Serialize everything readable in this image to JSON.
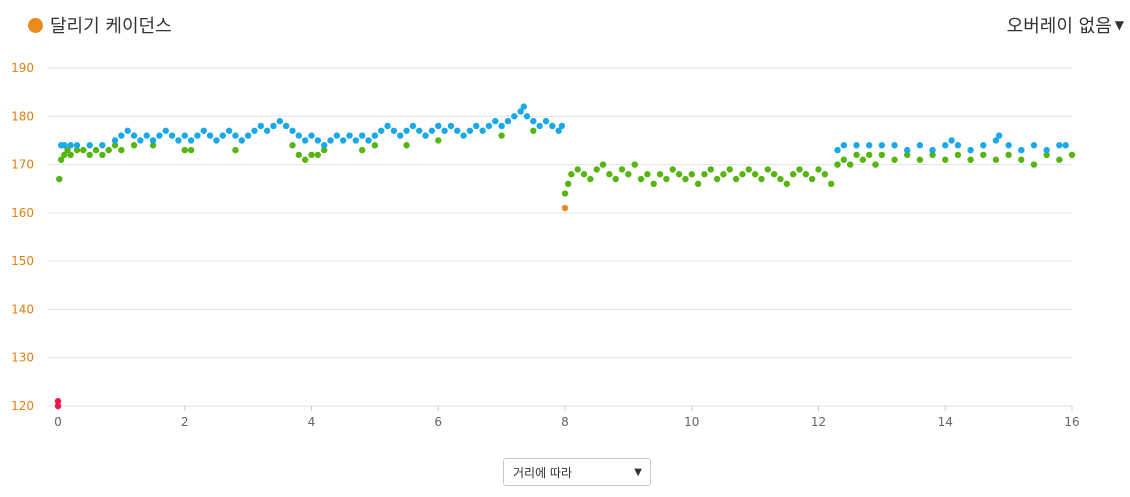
{
  "header": {
    "title": "달리기 케이던스",
    "overlay_label": "오버레이 없음",
    "legend_color": "#ec8a1b",
    "overlay_icon": "chevron-down-icon"
  },
  "footer": {
    "select_value": "거리에 따라",
    "select_icon": "chevron-down-icon"
  },
  "chart_data": {
    "type": "scatter",
    "xlabel": "",
    "ylabel": "",
    "xlim": [
      0,
      16
    ],
    "ylim": [
      120,
      190
    ],
    "x_ticks": [
      0,
      2,
      4,
      6,
      8,
      10,
      12,
      14,
      16
    ],
    "y_ticks": [
      120,
      130,
      140,
      150,
      160,
      170,
      180,
      190
    ],
    "grid": true,
    "colors": {
      "red": "#e8174a",
      "orange": "#ec8a1b",
      "green": "#55b612",
      "blue": "#1ba8e8"
    },
    "series": [
      {
        "color": "red",
        "points": [
          [
            0.0,
            120
          ],
          [
            0.0,
            121
          ]
        ]
      },
      {
        "color": "orange",
        "points": [
          [
            8.0,
            161
          ]
        ]
      },
      {
        "color": "green",
        "points": [
          [
            0.02,
            167
          ],
          [
            0.05,
            171
          ],
          [
            0.1,
            172
          ],
          [
            0.15,
            173
          ],
          [
            0.2,
            172
          ],
          [
            0.3,
            173
          ],
          [
            0.4,
            173
          ],
          [
            0.5,
            172
          ],
          [
            0.6,
            173
          ],
          [
            0.7,
            172
          ],
          [
            0.8,
            173
          ],
          [
            0.9,
            174
          ],
          [
            1.0,
            173
          ],
          [
            1.2,
            174
          ],
          [
            1.5,
            174
          ],
          [
            2.0,
            173
          ],
          [
            2.1,
            173
          ],
          [
            2.8,
            173
          ],
          [
            3.7,
            174
          ],
          [
            3.8,
            172
          ],
          [
            3.9,
            171
          ],
          [
            4.0,
            172
          ],
          [
            4.1,
            172
          ],
          [
            4.2,
            173
          ],
          [
            4.8,
            173
          ],
          [
            5.0,
            174
          ],
          [
            5.5,
            174
          ],
          [
            6.0,
            175
          ],
          [
            7.0,
            176
          ],
          [
            7.5,
            177
          ],
          [
            8.0,
            164
          ],
          [
            8.05,
            166
          ],
          [
            8.1,
            168
          ],
          [
            8.2,
            169
          ],
          [
            8.3,
            168
          ],
          [
            8.4,
            167
          ],
          [
            8.5,
            169
          ],
          [
            8.6,
            170
          ],
          [
            8.7,
            168
          ],
          [
            8.8,
            167
          ],
          [
            8.9,
            169
          ],
          [
            9.0,
            168
          ],
          [
            9.1,
            170
          ],
          [
            9.2,
            167
          ],
          [
            9.3,
            168
          ],
          [
            9.4,
            166
          ],
          [
            9.5,
            168
          ],
          [
            9.6,
            167
          ],
          [
            9.7,
            169
          ],
          [
            9.8,
            168
          ],
          [
            9.9,
            167
          ],
          [
            10.0,
            168
          ],
          [
            10.1,
            166
          ],
          [
            10.2,
            168
          ],
          [
            10.3,
            169
          ],
          [
            10.4,
            167
          ],
          [
            10.5,
            168
          ],
          [
            10.6,
            169
          ],
          [
            10.7,
            167
          ],
          [
            10.8,
            168
          ],
          [
            10.9,
            169
          ],
          [
            11.0,
            168
          ],
          [
            11.1,
            167
          ],
          [
            11.2,
            169
          ],
          [
            11.3,
            168
          ],
          [
            11.4,
            167
          ],
          [
            11.5,
            166
          ],
          [
            11.6,
            168
          ],
          [
            11.7,
            169
          ],
          [
            11.8,
            168
          ],
          [
            11.9,
            167
          ],
          [
            12.0,
            169
          ],
          [
            12.1,
            168
          ],
          [
            12.2,
            166
          ],
          [
            12.3,
            170
          ],
          [
            12.4,
            171
          ],
          [
            12.5,
            170
          ],
          [
            12.6,
            172
          ],
          [
            12.7,
            171
          ],
          [
            12.8,
            172
          ],
          [
            12.9,
            170
          ],
          [
            13.0,
            172
          ],
          [
            13.2,
            171
          ],
          [
            13.4,
            172
          ],
          [
            13.6,
            171
          ],
          [
            13.8,
            172
          ],
          [
            14.0,
            171
          ],
          [
            14.2,
            172
          ],
          [
            14.4,
            171
          ],
          [
            14.6,
            172
          ],
          [
            14.8,
            171
          ],
          [
            15.0,
            172
          ],
          [
            15.2,
            171
          ],
          [
            15.4,
            170
          ],
          [
            15.6,
            172
          ],
          [
            15.8,
            171
          ],
          [
            16.0,
            172
          ]
        ]
      },
      {
        "color": "blue",
        "points": [
          [
            0.05,
            174
          ],
          [
            0.1,
            174
          ],
          [
            0.2,
            174
          ],
          [
            0.3,
            174
          ],
          [
            0.5,
            174
          ],
          [
            0.7,
            174
          ],
          [
            0.9,
            175
          ],
          [
            1.0,
            176
          ],
          [
            1.1,
            177
          ],
          [
            1.2,
            176
          ],
          [
            1.3,
            175
          ],
          [
            1.4,
            176
          ],
          [
            1.5,
            175
          ],
          [
            1.6,
            176
          ],
          [
            1.7,
            177
          ],
          [
            1.8,
            176
          ],
          [
            1.9,
            175
          ],
          [
            2.0,
            176
          ],
          [
            2.1,
            175
          ],
          [
            2.2,
            176
          ],
          [
            2.3,
            177
          ],
          [
            2.4,
            176
          ],
          [
            2.5,
            175
          ],
          [
            2.6,
            176
          ],
          [
            2.7,
            177
          ],
          [
            2.8,
            176
          ],
          [
            2.9,
            175
          ],
          [
            3.0,
            176
          ],
          [
            3.1,
            177
          ],
          [
            3.2,
            178
          ],
          [
            3.3,
            177
          ],
          [
            3.4,
            178
          ],
          [
            3.5,
            179
          ],
          [
            3.6,
            178
          ],
          [
            3.7,
            177
          ],
          [
            3.8,
            176
          ],
          [
            3.9,
            175
          ],
          [
            4.0,
            176
          ],
          [
            4.1,
            175
          ],
          [
            4.2,
            174
          ],
          [
            4.3,
            175
          ],
          [
            4.4,
            176
          ],
          [
            4.5,
            175
          ],
          [
            4.6,
            176
          ],
          [
            4.7,
            175
          ],
          [
            4.8,
            176
          ],
          [
            4.9,
            175
          ],
          [
            5.0,
            176
          ],
          [
            5.1,
            177
          ],
          [
            5.2,
            178
          ],
          [
            5.3,
            177
          ],
          [
            5.4,
            176
          ],
          [
            5.5,
            177
          ],
          [
            5.6,
            178
          ],
          [
            5.7,
            177
          ],
          [
            5.8,
            176
          ],
          [
            5.9,
            177
          ],
          [
            6.0,
            178
          ],
          [
            6.1,
            177
          ],
          [
            6.2,
            178
          ],
          [
            6.3,
            177
          ],
          [
            6.4,
            176
          ],
          [
            6.5,
            177
          ],
          [
            6.6,
            178
          ],
          [
            6.7,
            177
          ],
          [
            6.8,
            178
          ],
          [
            6.9,
            179
          ],
          [
            7.0,
            178
          ],
          [
            7.1,
            179
          ],
          [
            7.2,
            180
          ],
          [
            7.3,
            181
          ],
          [
            7.35,
            182
          ],
          [
            7.4,
            180
          ],
          [
            7.5,
            179
          ],
          [
            7.6,
            178
          ],
          [
            7.7,
            179
          ],
          [
            7.8,
            178
          ],
          [
            7.9,
            177
          ],
          [
            7.95,
            178
          ],
          [
            12.3,
            173
          ],
          [
            12.4,
            174
          ],
          [
            12.6,
            174
          ],
          [
            12.8,
            174
          ],
          [
            13.0,
            174
          ],
          [
            13.2,
            174
          ],
          [
            13.4,
            173
          ],
          [
            13.6,
            174
          ],
          [
            13.8,
            173
          ],
          [
            14.0,
            174
          ],
          [
            14.1,
            175
          ],
          [
            14.2,
            174
          ],
          [
            14.4,
            173
          ],
          [
            14.6,
            174
          ],
          [
            14.8,
            175
          ],
          [
            14.85,
            176
          ],
          [
            15.0,
            174
          ],
          [
            15.2,
            173
          ],
          [
            15.4,
            174
          ],
          [
            15.6,
            173
          ],
          [
            15.8,
            174
          ],
          [
            15.9,
            174
          ]
        ]
      }
    ]
  }
}
